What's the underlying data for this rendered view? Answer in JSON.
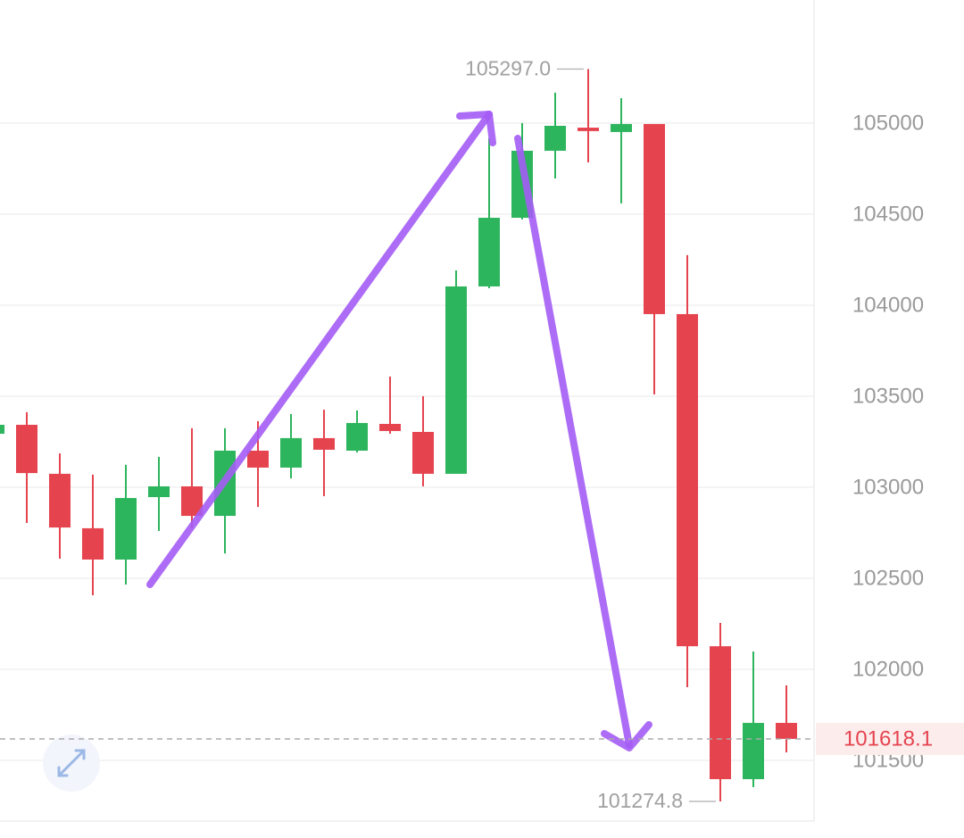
{
  "chart_data": {
    "type": "candlestick",
    "up_color": "#2db55d",
    "down_color": "#e5444f",
    "open": [
      103294,
      103343,
      103074,
      102775,
      102603,
      102946,
      103005,
      102843,
      103201,
      103108,
      103270,
      103201,
      103348,
      103304,
      103074,
      104103,
      104480,
      104848,
      104975,
      104951,
      104995,
      103951,
      102127,
      101397,
      101706
    ],
    "high": [
      103363,
      103412,
      103186,
      103069,
      103123,
      103167,
      103324,
      103324,
      103363,
      103402,
      103426,
      103422,
      103608,
      103500,
      104191,
      104917,
      105000,
      105167,
      105297,
      105137,
      104995,
      104275,
      102255,
      102098,
      101912
    ],
    "low": [
      103284,
      102804,
      102608,
      102407,
      102466,
      102760,
      102775,
      102637,
      102892,
      103049,
      102951,
      103191,
      103294,
      103005,
      103074,
      104093,
      104471,
      104696,
      104784,
      104559,
      103510,
      101902,
      101274.8,
      101353,
      101544
    ],
    "close": [
      103343,
      103078,
      102779,
      102603,
      102941,
      103005,
      102843,
      103201,
      103108,
      103270,
      103206,
      103353,
      103309,
      103074,
      104103,
      104480,
      104848,
      104985,
      104956,
      104995,
      103951,
      102127,
      101397,
      101706,
      101618.1
    ],
    "ylim": [
      101167,
      105676
    ],
    "yticks": [
      101500,
      102000,
      102500,
      103000,
      103500,
      104000,
      104500,
      105000
    ],
    "grid": true,
    "max_label": {
      "value": 105297,
      "label": "105297.0"
    },
    "min_label": {
      "value": 101274.8,
      "label": "101274.8"
    },
    "last_price": {
      "value": 101618.1,
      "label": "101618.1"
    }
  }
}
